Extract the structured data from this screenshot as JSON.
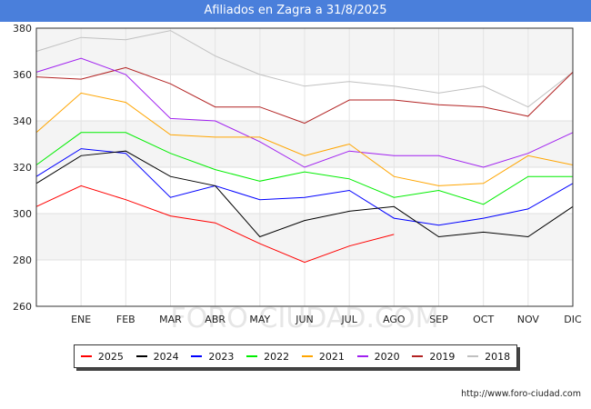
{
  "chart_data": {
    "type": "line",
    "title": "Afiliados en Zagra a 31/8/2025",
    "categories": [
      "",
      "ENE",
      "FEB",
      "MAR",
      "ABR",
      "MAY",
      "JUN",
      "JUL",
      "AGO",
      "SEP",
      "OCT",
      "NOV",
      "DIC"
    ],
    "ylim": [
      260,
      380
    ],
    "yticks": [
      260,
      280,
      300,
      320,
      340,
      360,
      380
    ],
    "watermark": "FORO-CIUDAD.COM",
    "series": [
      {
        "name": "2025",
        "color": "#ff0000",
        "values": [
          303,
          312,
          306,
          299,
          296,
          287,
          279,
          286,
          291,
          null,
          null,
          null,
          null
        ]
      },
      {
        "name": "2024",
        "color": "#000000",
        "values": [
          313,
          325,
          327,
          316,
          312,
          290,
          297,
          301,
          303,
          290,
          292,
          290,
          303
        ]
      },
      {
        "name": "2023",
        "color": "#0000ff",
        "values": [
          316,
          328,
          326,
          307,
          312,
          306,
          307,
          310,
          298,
          295,
          298,
          302,
          313
        ]
      },
      {
        "name": "2022",
        "color": "#00ee00",
        "values": [
          321,
          335,
          335,
          326,
          319,
          314,
          318,
          315,
          307,
          310,
          304,
          316,
          316
        ]
      },
      {
        "name": "2021",
        "color": "#ffa500",
        "values": [
          335,
          352,
          348,
          334,
          333,
          333,
          325,
          330,
          316,
          312,
          313,
          325,
          321
        ]
      },
      {
        "name": "2020",
        "color": "#a020f0",
        "values": [
          361,
          367,
          360,
          341,
          340,
          331,
          320,
          327,
          325,
          325,
          320,
          326,
          335
        ]
      },
      {
        "name": "2019",
        "color": "#b22222",
        "values": [
          359,
          358,
          363,
          356,
          346,
          346,
          339,
          349,
          349,
          347,
          346,
          342,
          361
        ]
      },
      {
        "name": "2018",
        "color": "#c0c0c0",
        "values": [
          370,
          376,
          375,
          379,
          368,
          360,
          355,
          357,
          355,
          352,
          355,
          346,
          361
        ]
      }
    ]
  },
  "legend_labels": [
    "2025",
    "2024",
    "2023",
    "2022",
    "2021",
    "2020",
    "2019",
    "2018"
  ],
  "source": "http://www.foro-ciudad.com"
}
